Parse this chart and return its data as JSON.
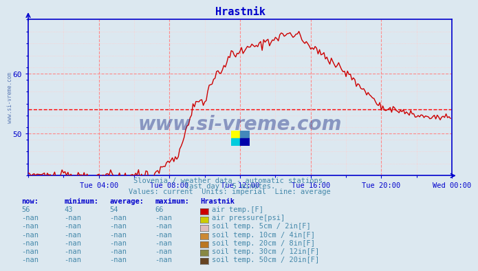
{
  "title": "Hrastnik",
  "title_color": "#0000cc",
  "bg_color": "#dce8f0",
  "plot_bg_color": "#dce8f0",
  "grid_color_major": "#ff8888",
  "grid_color_minor": "#ffcccc",
  "axis_color": "#0000cc",
  "line_color": "#cc0000",
  "avg_line_color": "#ff0000",
  "avg_line_value": 54.0,
  "y_min": 43.0,
  "y_max": 69.0,
  "y_ticks": [
    50,
    60
  ],
  "x_ticks_labels": [
    "Tue 04:00",
    "Tue 08:00",
    "Tue 12:00",
    "Tue 16:00",
    "Tue 20:00",
    "Wed 00:00"
  ],
  "x_ticks_positions": [
    48,
    96,
    144,
    192,
    240,
    288
  ],
  "x_total_points": 288,
  "watermark_text": "www.si-vreme.com",
  "sub_text1": "Slovenia / weather data - automatic stations.",
  "sub_text2": "last day / 5 minutes.",
  "sub_text3": "Values: current  Units: imperial  Line: average",
  "sub_text_color": "#4488aa",
  "legend_header_color": "#0000cc",
  "legend_data_color": "#4488aa",
  "legend_header": [
    "now:",
    "minimum:",
    "average:",
    "maximum:",
    "Hrastnik"
  ],
  "legend_data": [
    [
      "56",
      "43",
      "54",
      "66",
      "#cc0000",
      "air temp.[F]"
    ],
    [
      "-nan",
      "-nan",
      "-nan",
      "-nan",
      "#cccc00",
      "air pressure[psi]"
    ],
    [
      "-nan",
      "-nan",
      "-nan",
      "-nan",
      "#ddbbbb",
      "soil temp. 5cm / 2in[F]"
    ],
    [
      "-nan",
      "-nan",
      "-nan",
      "-nan",
      "#cc8833",
      "soil temp. 10cm / 4in[F]"
    ],
    [
      "-nan",
      "-nan",
      "-nan",
      "-nan",
      "#bb7722",
      "soil temp. 20cm / 8in[F]"
    ],
    [
      "-nan",
      "-nan",
      "-nan",
      "-nan",
      "#888844",
      "soil temp. 30cm / 12in[F]"
    ],
    [
      "-nan",
      "-nan",
      "-nan",
      "-nan",
      "#664422",
      "soil temp. 50cm / 20in[F]"
    ]
  ],
  "watermark_color": "#223388",
  "side_watermark_color": "#4466aa",
  "logo_colors": [
    "#ffff00",
    "#00ccdd",
    "#4488cc",
    "#000088"
  ]
}
